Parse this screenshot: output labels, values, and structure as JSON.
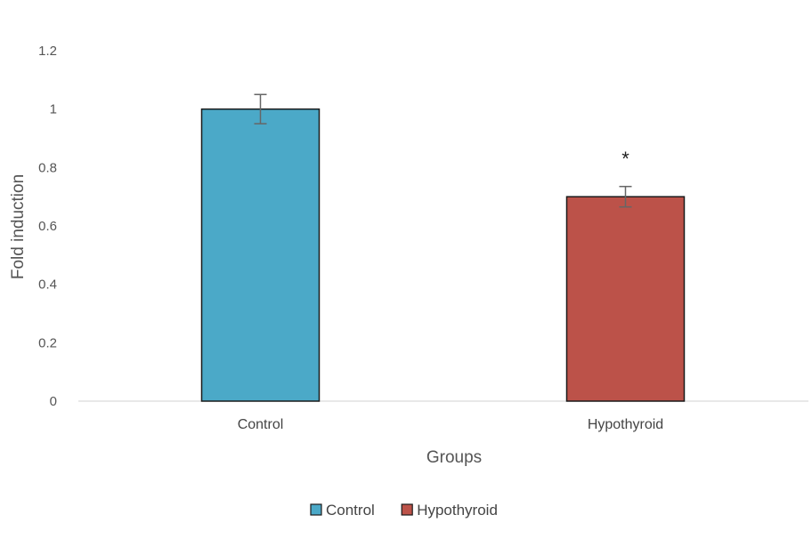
{
  "chart_data": {
    "type": "bar",
    "categories": [
      "Control",
      "Hypothyroid"
    ],
    "series": [
      {
        "name": "Control",
        "values": [
          1.0,
          null
        ],
        "errors": [
          0.05,
          null
        ],
        "color": "#4BA9C8"
      },
      {
        "name": "Hypothyroid",
        "values": [
          null,
          0.7
        ],
        "errors": [
          null,
          0.035
        ],
        "color": "#BC5249"
      }
    ],
    "annotations": [
      {
        "category": "Hypothyroid",
        "text": "*"
      }
    ],
    "xlabel": "Groups",
    "ylabel": "Fold induction",
    "ylim": [
      0,
      1.2
    ],
    "yticks": [
      "0",
      "0.2",
      "0.4",
      "0.6",
      "0.8",
      "1",
      "1.2"
    ],
    "grid": false,
    "legend_position": "bottom"
  }
}
